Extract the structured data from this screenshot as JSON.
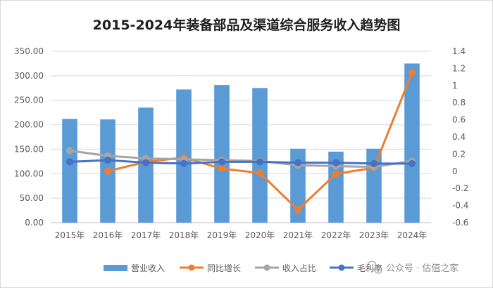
{
  "chart_data": {
    "type": "bar",
    "title": "2015-2024年装备部品及渠道综合服务收入趋势图",
    "categories": [
      "2015年",
      "2016年",
      "2017年",
      "2018年",
      "2019年",
      "2020年",
      "2021年",
      "2022年",
      "2023年",
      "2024年"
    ],
    "y_left": {
      "ylim": [
        0,
        350
      ],
      "ticks": [
        "0.00",
        "50.00",
        "100.00",
        "150.00",
        "200.00",
        "250.00",
        "300.00",
        "350.00"
      ]
    },
    "y_right": {
      "ylim": [
        -0.6,
        1.4
      ],
      "ticks": [
        "-0.6",
        "-0.4",
        "-0.2",
        "0",
        "0.2",
        "0.4",
        "0.6",
        "0.8",
        "1",
        "1.2",
        "1.4"
      ]
    },
    "series": [
      {
        "name": "营业收入",
        "type": "bar",
        "axis": "left",
        "color": "#5b9bd5",
        "values": [
          212,
          211,
          235,
          272,
          281,
          275,
          151,
          145,
          151,
          325
        ]
      },
      {
        "name": "同比增长",
        "type": "line",
        "axis": "right",
        "color": "#ed7d31",
        "values": [
          null,
          0.0,
          0.11,
          0.16,
          0.03,
          -0.02,
          -0.45,
          -0.03,
          0.04,
          1.15
        ]
      },
      {
        "name": "收入占比",
        "type": "line",
        "axis": "right",
        "color": "#a5a5a5",
        "values": [
          0.24,
          0.18,
          0.15,
          0.14,
          0.13,
          0.12,
          0.07,
          0.06,
          0.05,
          0.12
        ]
      },
      {
        "name": "毛利率",
        "type": "line",
        "axis": "right",
        "color": "#4472c4",
        "values": [
          0.11,
          0.13,
          0.1,
          0.09,
          0.11,
          0.11,
          0.1,
          0.1,
          0.09,
          0.09
        ]
      }
    ],
    "legend_position": "bottom"
  },
  "legend": {
    "items": [
      "营业收入",
      "同比增长",
      "收入占比",
      "毛利率"
    ]
  },
  "watermark": {
    "text": "公众号 · 估值之家"
  }
}
